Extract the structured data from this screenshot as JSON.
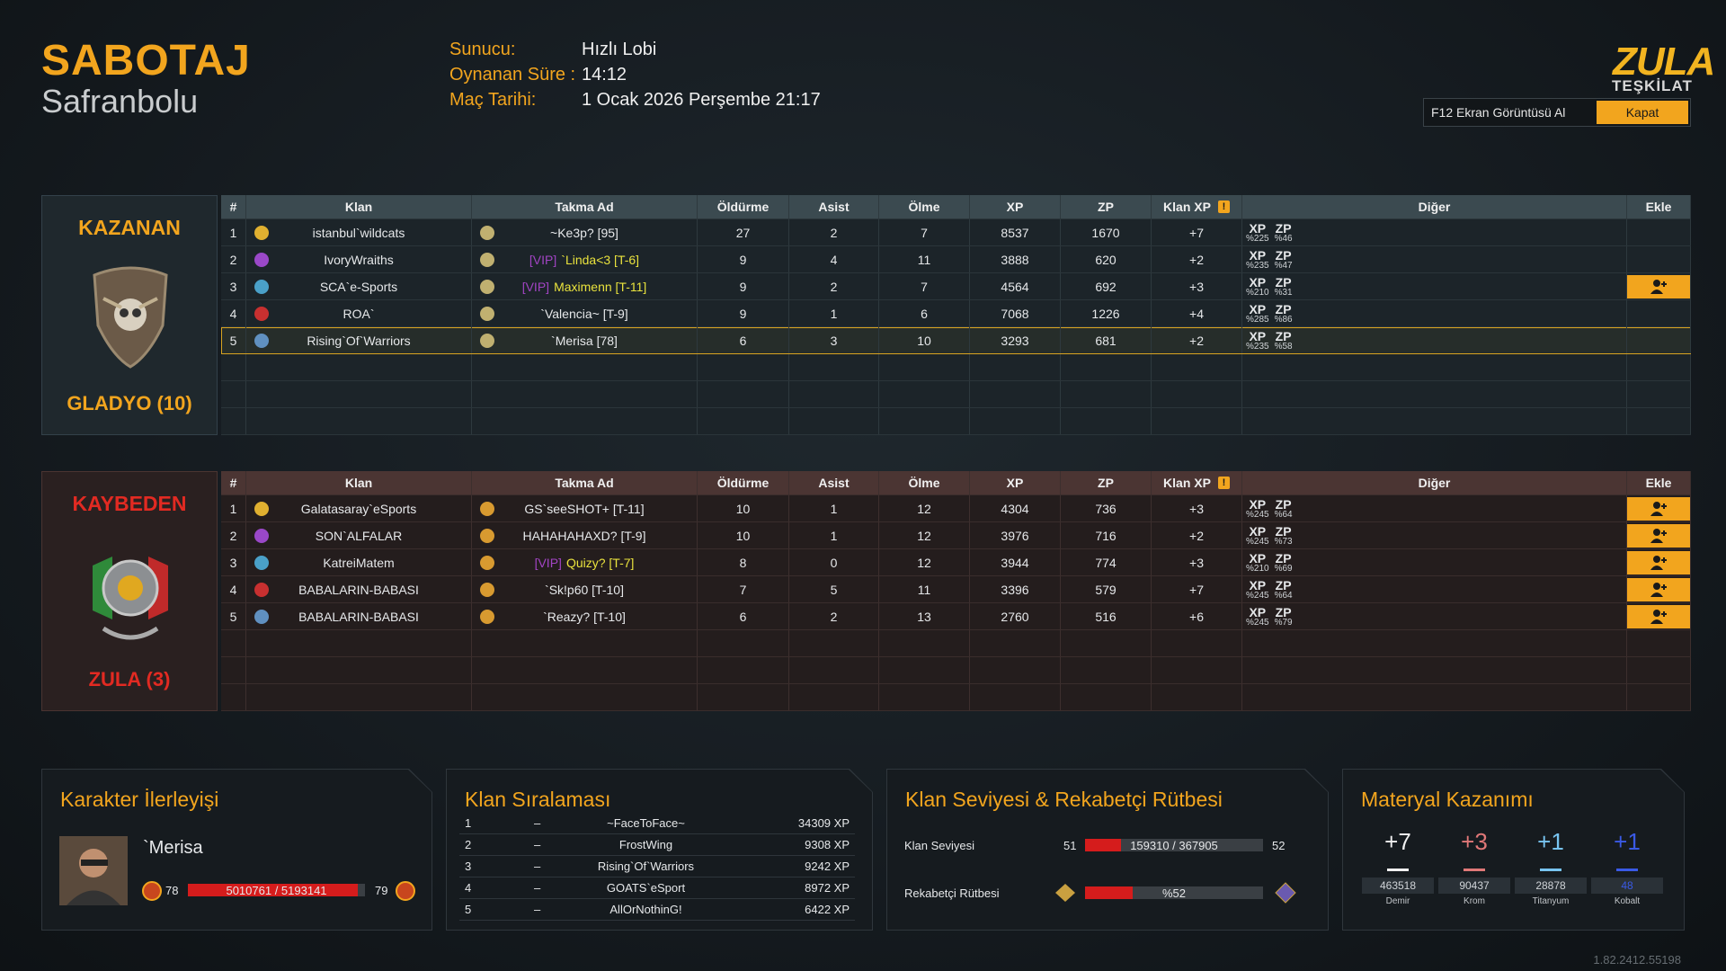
{
  "header": {
    "mode": "SABOTAJ",
    "map": "Safranbolu",
    "info": [
      {
        "label": "Sunucu:",
        "value": "Hızlı Lobi"
      },
      {
        "label": "Oynanan Süre :",
        "value": "14:12"
      },
      {
        "label": "Maç Tarihi:",
        "value": "1 Ocak 2026 Perşembe 21:17"
      }
    ],
    "logo": {
      "title": "ZULA",
      "subtitle": "TEŞKİLAT"
    },
    "buttons": {
      "screenshot": "F12 Ekran Görüntüsü Al",
      "close": "Kapat"
    }
  },
  "columns": [
    "#",
    "Klan",
    "Takma Ad",
    "Öldürme",
    "Asist",
    "Ölme",
    "XP",
    "ZP",
    "Klan XP",
    "Diğer",
    "Ekle"
  ],
  "bonus_labels": {
    "xp": "XP",
    "zp": "ZP"
  },
  "teams": [
    {
      "result": "KAZANAN",
      "name": "GLADYO (10)",
      "rows": [
        {
          "rank": 1,
          "clan": "istanbul`wildcats",
          "nick": "~Ke3p? [95]",
          "kills": 27,
          "assists": 2,
          "deaths": 7,
          "xp": 8537,
          "zp": 1670,
          "clan_xp": "+7",
          "bonus": {
            "xp": "%225",
            "zp": "%46"
          }
        },
        {
          "rank": 2,
          "clan": "IvoryWraiths",
          "vip": "[VIP]",
          "nick": "`Linda<3 [T-6]",
          "kills": 9,
          "assists": 4,
          "deaths": 11,
          "xp": 3888,
          "zp": 620,
          "clan_xp": "+2",
          "bonus": {
            "xp": "%235",
            "zp": "%47"
          }
        },
        {
          "rank": 3,
          "clan": "SCA`e-Sports",
          "vip": "[VIP]",
          "nick": "Maximenn [T-11]",
          "kills": 9,
          "assists": 2,
          "deaths": 7,
          "xp": 4564,
          "zp": 692,
          "clan_xp": "+3",
          "bonus": {
            "xp": "%210",
            "zp": "%31"
          },
          "can_add": true
        },
        {
          "rank": 4,
          "clan": "ROA`",
          "nick": "`Valencia~ [T-9]",
          "kills": 9,
          "assists": 1,
          "deaths": 6,
          "xp": 7068,
          "zp": 1226,
          "clan_xp": "+4",
          "bonus": {
            "xp": "%285",
            "zp": "%86"
          }
        },
        {
          "rank": 5,
          "clan": "Rising`Of`Warriors",
          "nick": "`Merisa [78]",
          "kills": 6,
          "assists": 3,
          "deaths": 10,
          "xp": 3293,
          "zp": 681,
          "clan_xp": "+2",
          "bonus": {
            "xp": "%235",
            "zp": "%58"
          },
          "highlight": true
        }
      ]
    },
    {
      "result": "KAYBEDEN",
      "name": "ZULA (3)",
      "rows": [
        {
          "rank": 1,
          "clan": "Galatasaray`eSports",
          "nick": "GS`seeSHOT+ [T-11]",
          "kills": 10,
          "assists": 1,
          "deaths": 12,
          "xp": 4304,
          "zp": 736,
          "clan_xp": "+3",
          "bonus": {
            "xp": "%245",
            "zp": "%64"
          },
          "can_add": true
        },
        {
          "rank": 2,
          "clan": "SON`ALFALAR",
          "nick": "HAHAHAHAXD? [T-9]",
          "kills": 10,
          "assists": 1,
          "deaths": 12,
          "xp": 3976,
          "zp": 716,
          "clan_xp": "+2",
          "bonus": {
            "xp": "%245",
            "zp": "%73"
          },
          "can_add": true
        },
        {
          "rank": 3,
          "clan": "KatreiMatem",
          "vip": "[VIP]",
          "nick": "Quizy? [T-7]",
          "kills": 8,
          "assists": 0,
          "deaths": 12,
          "xp": 3944,
          "zp": 774,
          "clan_xp": "+3",
          "bonus": {
            "xp": "%210",
            "zp": "%69"
          },
          "can_add": true
        },
        {
          "rank": 4,
          "clan": "BABALARIN-BABASI",
          "nick": "`Sk!p60 [T-10]",
          "kills": 7,
          "assists": 5,
          "deaths": 11,
          "xp": 3396,
          "zp": 579,
          "clan_xp": "+7",
          "bonus": {
            "xp": "%245",
            "zp": "%64"
          },
          "can_add": true
        },
        {
          "rank": 5,
          "clan": "BABALARIN-BABASI",
          "nick": "`Reazy? [T-10]",
          "kills": 6,
          "assists": 2,
          "deaths": 13,
          "xp": 2760,
          "zp": 516,
          "clan_xp": "+6",
          "bonus": {
            "xp": "%245",
            "zp": "%79"
          },
          "can_add": true
        }
      ]
    }
  ],
  "character": {
    "title": "Karakter İlerleyişi",
    "name": "`Merisa",
    "level": 78,
    "progress": "5010761 / 5193141",
    "next_level": 79
  },
  "clan_ranking": {
    "title": "Klan Sıralaması",
    "rows": [
      {
        "rank": 1,
        "change": "–",
        "name": "~FaceToFace~",
        "xp": "34309 XP"
      },
      {
        "rank": 2,
        "change": "–",
        "name": "FrostWing",
        "xp": "9308 XP"
      },
      {
        "rank": 3,
        "change": "–",
        "name": "Rising`Of`Warriors",
        "xp": "9242 XP"
      },
      {
        "rank": 4,
        "change": "–",
        "name": "GOATS`eSport",
        "xp": "8972 XP"
      },
      {
        "rank": 5,
        "change": "–",
        "name": "AllOrNothinG!",
        "xp": "6422 XP"
      }
    ]
  },
  "clan_level": {
    "title": "Klan Seviyesi & Rekabetçi Rütbesi",
    "level_label": "Klan Seviyesi",
    "level": 51,
    "progress": "159310 / 367905",
    "next_level": 52,
    "rank_label": "Rekabetçi Rütbesi",
    "rank_progress": "%52"
  },
  "materials": {
    "title": "Materyal Kazanımı",
    "items": [
      {
        "gain": "+7",
        "total": 463518,
        "name": "Demir"
      },
      {
        "gain": "+3",
        "total": 90437,
        "name": "Krom"
      },
      {
        "gain": "+1",
        "total": 28878,
        "name": "Titanyum"
      },
      {
        "gain": "+1",
        "total": 48,
        "name": "Kobalt"
      }
    ]
  },
  "version": "1.82.2412.55198"
}
